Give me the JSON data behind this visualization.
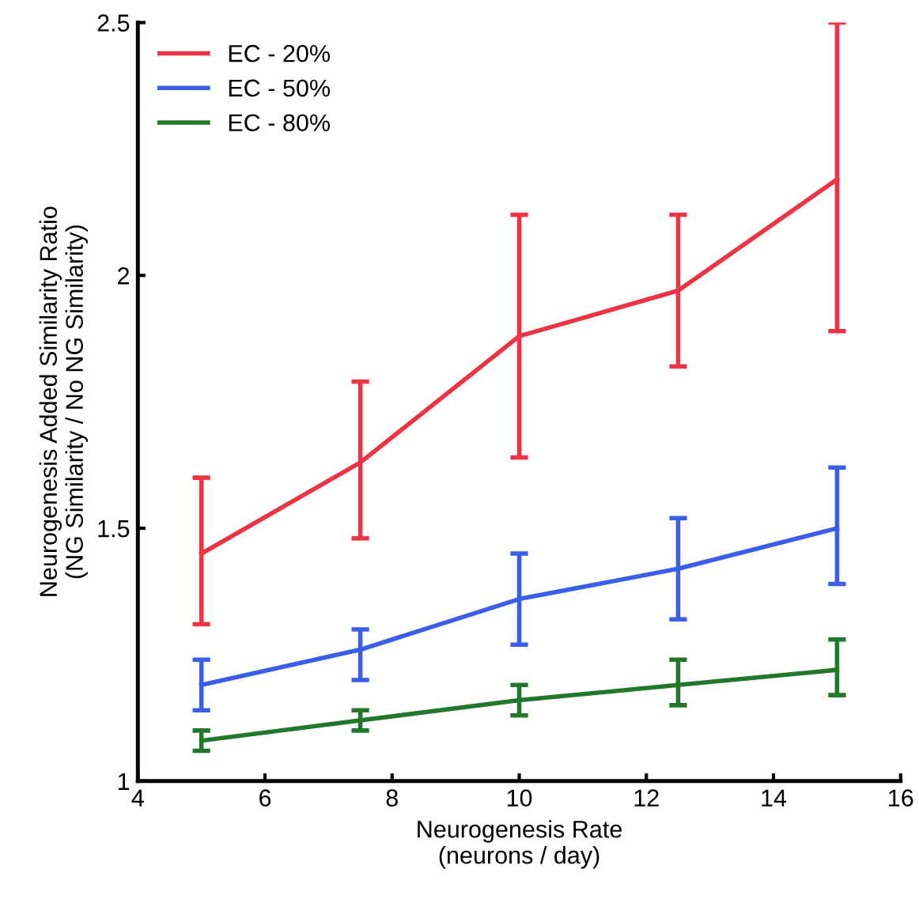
{
  "chart_data": {
    "type": "line",
    "xlabel": "Neurogenesis Rate\n(neurons / day)",
    "ylabel": "Neurogenesis Added Similarity Ratio\n(NG Similarity / No NG Similarity)",
    "x": [
      5,
      7.5,
      10,
      12.5,
      15
    ],
    "series": [
      {
        "name": "EC - 20%",
        "color": "#ee3344",
        "values": [
          1.45,
          1.63,
          1.88,
          1.97,
          2.19
        ],
        "errors": [
          [
            1.31,
            1.6
          ],
          [
            1.48,
            1.79
          ],
          [
            1.64,
            2.12
          ],
          [
            1.82,
            2.12
          ],
          [
            1.89,
            2.5
          ]
        ]
      },
      {
        "name": "EC - 50%",
        "color": "#3a5ee8",
        "values": [
          1.19,
          1.26,
          1.36,
          1.42,
          1.5
        ],
        "errors": [
          [
            1.14,
            1.24
          ],
          [
            1.2,
            1.3
          ],
          [
            1.27,
            1.45
          ],
          [
            1.32,
            1.52
          ],
          [
            1.39,
            1.62
          ]
        ]
      },
      {
        "name": "EC - 80%",
        "color": "#22782a",
        "values": [
          1.08,
          1.12,
          1.16,
          1.19,
          1.22
        ],
        "errors": [
          [
            1.06,
            1.1
          ],
          [
            1.1,
            1.14
          ],
          [
            1.13,
            1.19
          ],
          [
            1.15,
            1.24
          ],
          [
            1.17,
            1.28
          ]
        ]
      }
    ],
    "xlim": [
      4,
      16
    ],
    "xticks": [
      4,
      6,
      8,
      10,
      12,
      14,
      16
    ],
    "ylim": [
      1,
      2.5
    ],
    "yticks": [
      1,
      1.5,
      2,
      2.5
    ],
    "grid": false,
    "legend": "top left",
    "marker": "none",
    "line_style": "solid"
  }
}
